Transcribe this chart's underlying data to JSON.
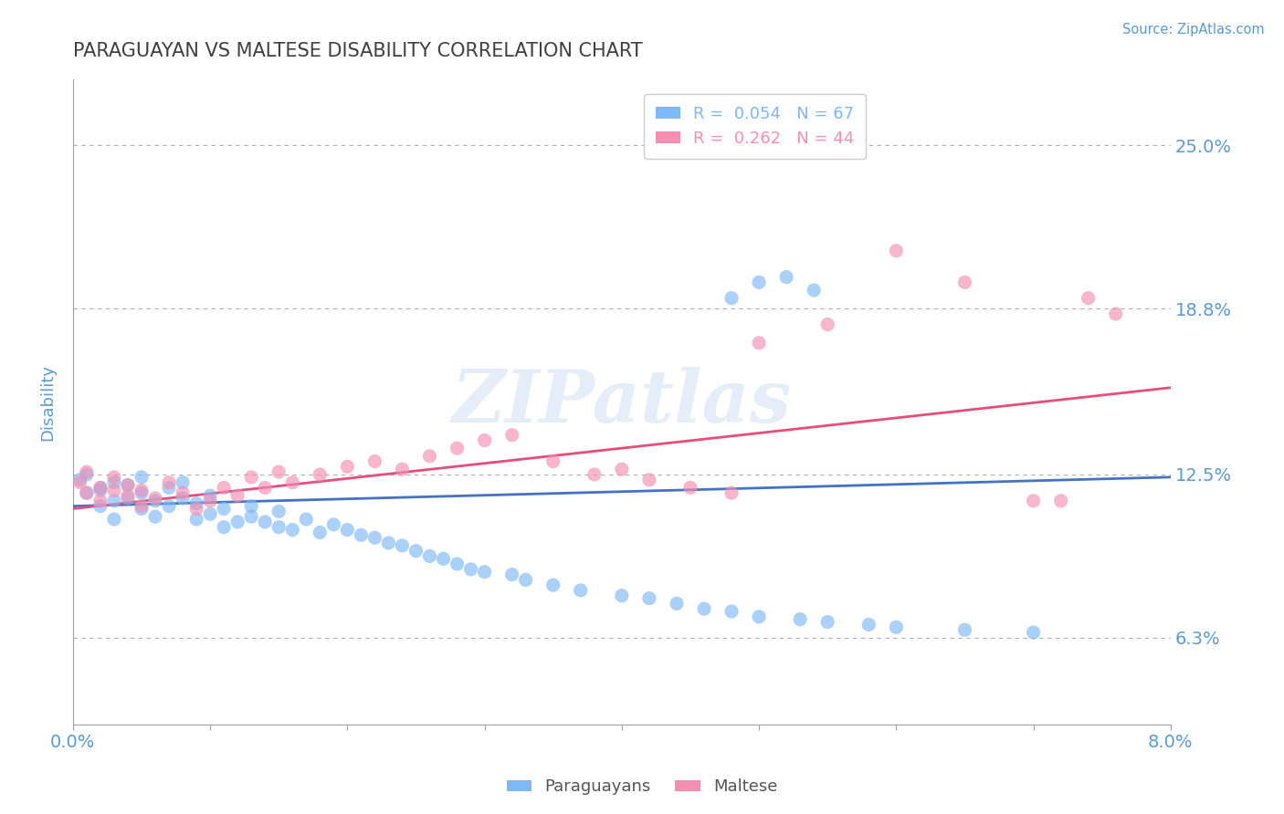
{
  "title": "PARAGUAYAN VS MALTESE DISABILITY CORRELATION CHART",
  "source_text": "Source: ZipAtlas.com",
  "ylabel": "Disability",
  "xlim": [
    0.0,
    0.08
  ],
  "ylim": [
    0.03,
    0.275
  ],
  "yticks": [
    0.063,
    0.125,
    0.188,
    0.25
  ],
  "ytick_labels": [
    "6.3%",
    "12.5%",
    "18.8%",
    "25.0%"
  ],
  "xticks": [
    0.0,
    0.01,
    0.02,
    0.03,
    0.04,
    0.05,
    0.06,
    0.07,
    0.08
  ],
  "xtick_labels": [
    "0.0%",
    "",
    "",
    "",
    "",
    "",
    "",
    "",
    "8.0%"
  ],
  "legend_entries": [
    {
      "label": "R =  0.054   N = 67",
      "color": "#7eb8f7"
    },
    {
      "label": "R =  0.262   N = 44",
      "color": "#f48fb1"
    }
  ],
  "blue_scatter_x": [
    0.0005,
    0.001,
    0.001,
    0.002,
    0.002,
    0.002,
    0.003,
    0.003,
    0.003,
    0.004,
    0.004,
    0.005,
    0.005,
    0.005,
    0.006,
    0.006,
    0.007,
    0.007,
    0.008,
    0.008,
    0.009,
    0.009,
    0.01,
    0.01,
    0.011,
    0.011,
    0.012,
    0.013,
    0.013,
    0.014,
    0.015,
    0.015,
    0.016,
    0.017,
    0.018,
    0.019,
    0.02,
    0.021,
    0.022,
    0.023,
    0.024,
    0.025,
    0.026,
    0.027,
    0.028,
    0.029,
    0.03,
    0.032,
    0.033,
    0.035,
    0.037,
    0.04,
    0.042,
    0.044,
    0.046,
    0.048,
    0.05,
    0.053,
    0.055,
    0.058,
    0.06,
    0.065,
    0.07,
    0.048,
    0.05,
    0.052,
    0.054
  ],
  "blue_scatter_y": [
    0.123,
    0.118,
    0.125,
    0.12,
    0.113,
    0.119,
    0.115,
    0.122,
    0.108,
    0.116,
    0.121,
    0.112,
    0.118,
    0.124,
    0.109,
    0.115,
    0.113,
    0.12,
    0.116,
    0.122,
    0.108,
    0.114,
    0.11,
    0.117,
    0.105,
    0.112,
    0.107,
    0.113,
    0.109,
    0.107,
    0.105,
    0.111,
    0.104,
    0.108,
    0.103,
    0.106,
    0.104,
    0.102,
    0.101,
    0.099,
    0.098,
    0.096,
    0.094,
    0.093,
    0.091,
    0.089,
    0.088,
    0.087,
    0.085,
    0.083,
    0.081,
    0.079,
    0.078,
    0.076,
    0.074,
    0.073,
    0.071,
    0.07,
    0.069,
    0.068,
    0.067,
    0.066,
    0.065,
    0.192,
    0.198,
    0.2,
    0.195
  ],
  "pink_scatter_x": [
    0.0005,
    0.001,
    0.001,
    0.002,
    0.002,
    0.003,
    0.003,
    0.004,
    0.004,
    0.005,
    0.005,
    0.006,
    0.007,
    0.008,
    0.009,
    0.01,
    0.011,
    0.012,
    0.013,
    0.014,
    0.015,
    0.016,
    0.018,
    0.02,
    0.022,
    0.024,
    0.026,
    0.028,
    0.03,
    0.032,
    0.035,
    0.038,
    0.04,
    0.042,
    0.045,
    0.048,
    0.05,
    0.055,
    0.06,
    0.065,
    0.07,
    0.072,
    0.074,
    0.076
  ],
  "pink_scatter_y": [
    0.122,
    0.118,
    0.126,
    0.12,
    0.115,
    0.124,
    0.119,
    0.117,
    0.121,
    0.113,
    0.119,
    0.116,
    0.122,
    0.118,
    0.112,
    0.115,
    0.12,
    0.117,
    0.124,
    0.12,
    0.126,
    0.122,
    0.125,
    0.128,
    0.13,
    0.127,
    0.132,
    0.135,
    0.138,
    0.14,
    0.13,
    0.125,
    0.127,
    0.123,
    0.12,
    0.118,
    0.175,
    0.182,
    0.21,
    0.198,
    0.115,
    0.115,
    0.192,
    0.186
  ],
  "blue_line_x": [
    0.0,
    0.08
  ],
  "blue_line_y": [
    0.113,
    0.124
  ],
  "pink_line_x": [
    0.0,
    0.08
  ],
  "pink_line_y": [
    0.112,
    0.158
  ],
  "scatter_alpha": 0.65,
  "scatter_size": 120,
  "blue_color": "#7eb8f7",
  "pink_color": "#f48fb1",
  "blue_line_color": "#4472c4",
  "pink_line_color": "#e84d7a",
  "watermark_text": "ZIPatlas",
  "watermark_color": "#c5d9f0",
  "watermark_alpha": 0.45,
  "title_color": "#404040",
  "axis_label_color": "#5b9bd5",
  "grid_color": "#b0b0b0",
  "background_color": "#ffffff"
}
